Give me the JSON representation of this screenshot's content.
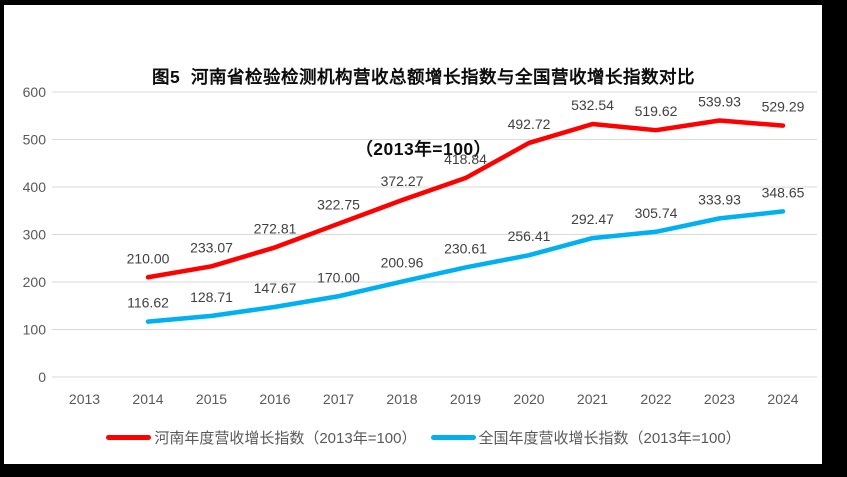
{
  "figure": {
    "title_line1": "图5  河南省检验检测机构营收总额增长指数与全国营收增长指数对比",
    "title_line2": "（2013年=100）"
  },
  "colors": {
    "henan": "#ff0000",
    "national": "#00b0f0",
    "gridline": "#d9d9d9",
    "axis_text": "#595959",
    "label_text": "#404040",
    "frame": "#000000",
    "background": "#ffffff"
  },
  "legend": {
    "items": [
      {
        "label": "河南年度营收增长指数（2013年=100）",
        "color_key": "henan"
      },
      {
        "label": "全国年度营收增长指数（2013年=100）",
        "color_key": "national"
      }
    ]
  },
  "chart_data": {
    "type": "line",
    "title": "图5 河南省检验检测机构营收总额增长指数与全国营收增长指数对比（2013年=100）",
    "categories": [
      "2013",
      "2014",
      "2015",
      "2016",
      "2017",
      "2018",
      "2019",
      "2020",
      "2021",
      "2022",
      "2023",
      "2024"
    ],
    "series": [
      {
        "name": "河南年度营收增长指数（2013年=100）",
        "color_key": "henan",
        "values": [
          null,
          210.0,
          233.07,
          272.81,
          322.75,
          372.27,
          418.84,
          492.72,
          532.54,
          519.62,
          539.93,
          529.29
        ]
      },
      {
        "name": "全国年度营收增长指数（2013年=100）",
        "color_key": "national",
        "values": [
          null,
          116.62,
          128.71,
          147.67,
          170.0,
          200.96,
          230.61,
          256.41,
          292.47,
          305.74,
          333.93,
          348.65
        ]
      }
    ],
    "xlabel": "",
    "ylabel": "",
    "ylim": [
      0,
      600
    ],
    "ytick_step": 100,
    "grid": true,
    "data_labels": true,
    "label_decimals": 2,
    "legend_position": "bottom"
  }
}
